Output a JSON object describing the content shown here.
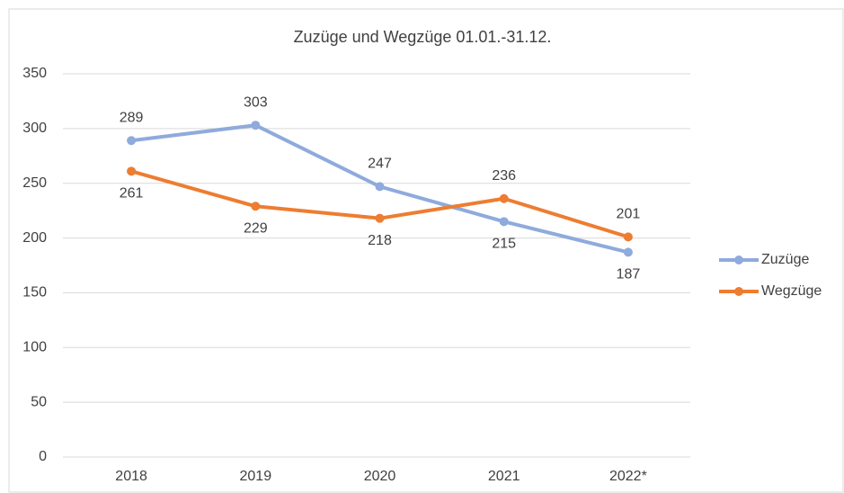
{
  "chart_data": {
    "type": "line",
    "title": "Zuzüge und Wegzüge 01.01.-31.12.",
    "categories": [
      "2018",
      "2019",
      "2020",
      "2021",
      "2022*"
    ],
    "series": [
      {
        "name": "Zuzüge",
        "color": "#8faadc",
        "values": [
          289,
          303,
          247,
          215,
          187
        ]
      },
      {
        "name": "Wegzüge",
        "color": "#ed7d31",
        "values": [
          261,
          229,
          218,
          236,
          201
        ]
      }
    ],
    "ylim": [
      0,
      350
    ],
    "yticks": [
      0,
      50,
      100,
      150,
      200,
      250,
      300,
      350
    ],
    "grid": true,
    "legend": "right"
  }
}
